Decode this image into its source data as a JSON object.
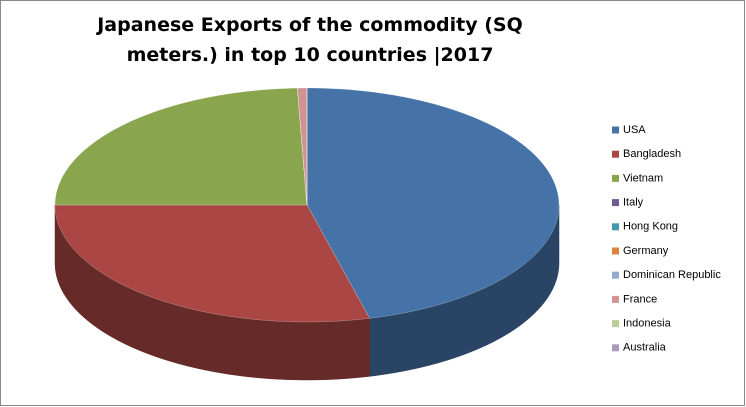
{
  "chart_data": {
    "type": "pie3d",
    "title": "Japanese Exports of the commodity (SQ meters.) in top 10 countries |2017",
    "categories": [
      "USA",
      "Bangladesh",
      "Vietnam",
      "Italy",
      "Hong Kong",
      "Germany",
      "Dominican Republic",
      "France",
      "Indonesia",
      "Australia"
    ],
    "values": [
      46,
      29,
      24.4,
      0,
      0,
      0,
      0,
      0.6,
      0,
      0
    ],
    "colors": [
      "#4572a7",
      "#aa4643",
      "#89a54e",
      "#71588f",
      "#4198af",
      "#db843d",
      "#93a9cf",
      "#d19392",
      "#b9cd96",
      "#a99bbd"
    ],
    "legend": "right"
  }
}
